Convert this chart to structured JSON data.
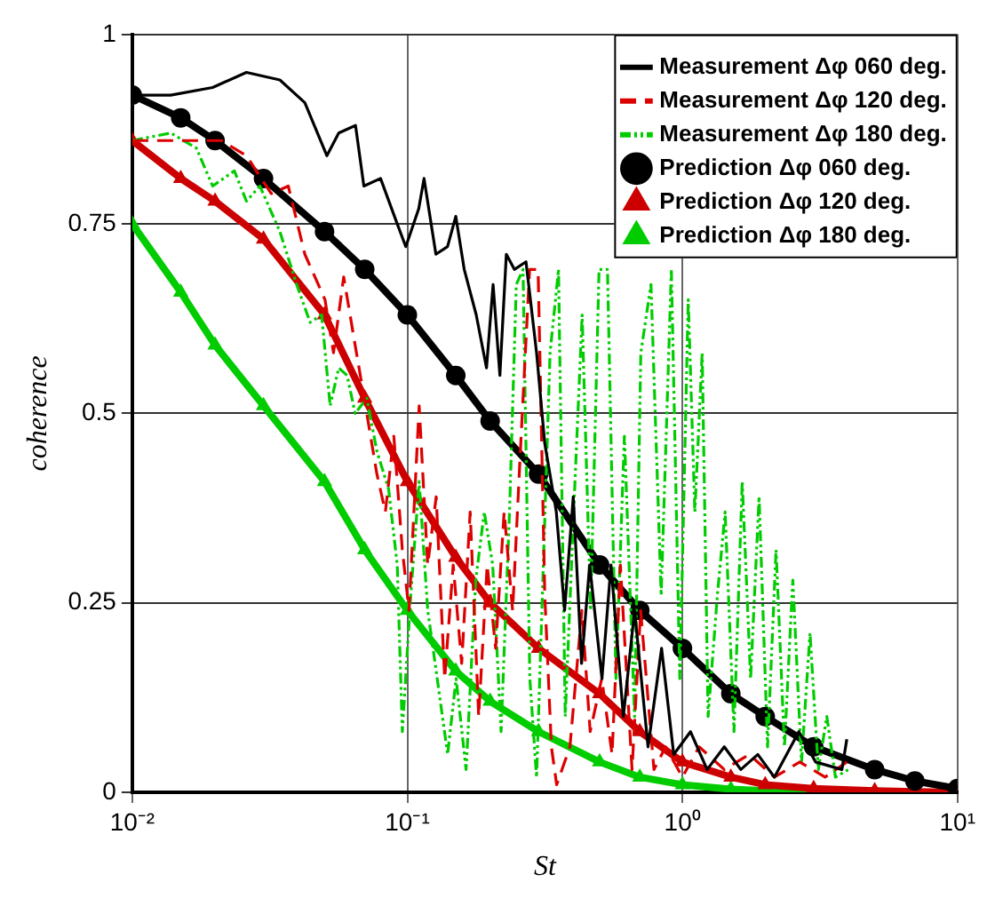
{
  "chart_data": {
    "type": "line",
    "xlabel": "St",
    "ylabel": "coherence",
    "log": "x",
    "xlim": [
      0.01,
      10
    ],
    "ylim": [
      0,
      1
    ],
    "xticks": [
      {
        "value": 0.01,
        "label": "10⁻²"
      },
      {
        "value": 0.1,
        "label": "10⁻¹"
      },
      {
        "value": 1,
        "label": "10⁰"
      },
      {
        "value": 10,
        "label": "10¹"
      }
    ],
    "yticks": [
      0,
      0.25,
      0.5,
      0.75,
      1
    ],
    "grid": true,
    "legend": "top right",
    "series": [
      {
        "name": "Measurement Δφ 060 deg.",
        "color": "#000000",
        "marker": "none",
        "line_style": "solid",
        "x": [
          0.01,
          0.0138,
          0.0196,
          0.026,
          0.0344,
          0.0424,
          0.051,
          0.0563,
          0.0648,
          0.0695,
          0.0799,
          0.0919,
          0.0987,
          0.11,
          0.115,
          0.127,
          0.14,
          0.15,
          0.161,
          0.178,
          0.194,
          0.205,
          0.217,
          0.229,
          0.245,
          0.27,
          0.295,
          0.316,
          0.348,
          0.373,
          0.401,
          0.43,
          0.46,
          0.51,
          0.55,
          0.61,
          0.67,
          0.75,
          0.84,
          0.93,
          1.07,
          1.23,
          1.42,
          1.63,
          1.88,
          2.16,
          2.65,
          3.05,
          3.8,
          3.96
        ],
        "values": [
          0.92,
          0.92,
          0.93,
          0.95,
          0.94,
          0.91,
          0.84,
          0.87,
          0.88,
          0.8,
          0.81,
          0.75,
          0.72,
          0.77,
          0.81,
          0.71,
          0.72,
          0.76,
          0.69,
          0.63,
          0.56,
          0.67,
          0.55,
          0.71,
          0.69,
          0.7,
          0.58,
          0.46,
          0.37,
          0.24,
          0.39,
          0.17,
          0.3,
          0.15,
          0.3,
          0.1,
          0.24,
          0.06,
          0.19,
          0.05,
          0.08,
          0.03,
          0.06,
          0.03,
          0.05,
          0.02,
          0.08,
          0.04,
          0.03,
          0.07
        ]
      },
      {
        "name": "Measurement Δφ 120 deg.",
        "color": "#dd0000",
        "marker": "none",
        "line_style": "dashed",
        "x": [
          0.01,
          0.0159,
          0.0211,
          0.026,
          0.032,
          0.0369,
          0.0424,
          0.0502,
          0.0539,
          0.0587,
          0.0646,
          0.0712,
          0.0775,
          0.0832,
          0.0893,
          0.0959,
          0.1014,
          0.1104,
          0.1186,
          0.1273,
          0.1367,
          0.1468,
          0.1576,
          0.1692,
          0.1817,
          0.1951,
          0.2094,
          0.2249,
          0.2414,
          0.2592,
          0.2783,
          0.2988,
          0.316,
          0.334,
          0.349,
          0.39,
          0.431,
          0.462,
          0.509,
          0.555,
          0.595,
          0.656,
          0.705,
          0.788,
          0.869,
          1.0,
          1.15,
          1.42,
          1.75,
          2.16,
          2.67,
          3.3,
          3.96
        ],
        "values": [
          0.86,
          0.86,
          0.86,
          0.84,
          0.79,
          0.8,
          0.71,
          0.65,
          0.58,
          0.68,
          0.59,
          0.5,
          0.42,
          0.37,
          0.47,
          0.32,
          0.24,
          0.51,
          0.3,
          0.39,
          0.15,
          0.3,
          0.17,
          0.37,
          0.1,
          0.3,
          0.19,
          0.37,
          0.24,
          0.47,
          0.69,
          0.69,
          0.26,
          0.06,
          0.01,
          0.06,
          0.24,
          0.08,
          0.15,
          0.05,
          0.3,
          0.03,
          0.24,
          0.03,
          0.06,
          0.02,
          0.06,
          0.03,
          0.05,
          0.02,
          0.04,
          0.02,
          0.04
        ]
      },
      {
        "name": "Measurement Δφ 180 deg.",
        "color": "#00cc00",
        "marker": "none",
        "line_style": "dotted",
        "x": [
          0.01,
          0.0138,
          0.0171,
          0.0196,
          0.0235,
          0.026,
          0.0291,
          0.0344,
          0.0396,
          0.0443,
          0.0488,
          0.0524,
          0.0563,
          0.0604,
          0.0646,
          0.0712,
          0.0775,
          0.0855,
          0.0919,
          0.0959,
          0.1029,
          0.1104,
          0.1186,
          0.1273,
          0.1401,
          0.1504,
          0.1635,
          0.1773,
          0.1904,
          0.2043,
          0.2192,
          0.2352,
          0.2489,
          0.2634,
          0.2788,
          0.295,
          0.3122,
          0.3303,
          0.3545,
          0.375,
          0.4025,
          0.432,
          0.4637,
          0.4977,
          0.5341,
          0.5733,
          0.6153,
          0.6701,
          0.7059,
          0.7687,
          0.8371,
          0.9117,
          0.9786,
          1.05,
          1.11,
          1.18,
          1.24,
          1.34,
          1.43,
          1.54,
          1.65,
          1.77,
          1.9,
          2.04,
          2.19,
          2.35,
          2.52,
          2.71,
          2.91,
          3.12,
          3.35,
          3.6,
          4.02
        ],
        "values": [
          0.86,
          0.87,
          0.85,
          0.8,
          0.82,
          0.78,
          0.8,
          0.74,
          0.67,
          0.62,
          0.63,
          0.51,
          0.56,
          0.55,
          0.5,
          0.52,
          0.45,
          0.4,
          0.3,
          0.08,
          0.26,
          0.41,
          0.24,
          0.16,
          0.05,
          0.15,
          0.03,
          0.28,
          0.37,
          0.3,
          0.08,
          0.37,
          0.67,
          0.69,
          0.15,
          0.02,
          0.3,
          0.58,
          0.69,
          0.1,
          0.37,
          0.63,
          0.24,
          0.69,
          0.69,
          0.15,
          0.47,
          0.1,
          0.58,
          0.67,
          0.26,
          0.69,
          0.15,
          0.65,
          0.37,
          0.58,
          0.1,
          0.26,
          0.37,
          0.08,
          0.41,
          0.15,
          0.39,
          0.06,
          0.32,
          0.06,
          0.28,
          0.04,
          0.21,
          0.03,
          0.1,
          0.02,
          0.03
        ]
      },
      {
        "name": "Prediction Δφ 060 deg.",
        "color": "#000000",
        "marker": "circle",
        "line_style": "solid",
        "x": [
          0.01,
          0.015,
          0.02,
          0.03,
          0.05,
          0.07,
          0.1,
          0.15,
          0.2,
          0.3,
          0.5,
          0.7,
          1,
          1.5,
          2,
          3,
          5,
          7,
          10
        ],
        "values": [
          0.92,
          0.89,
          0.86,
          0.81,
          0.74,
          0.69,
          0.63,
          0.55,
          0.49,
          0.42,
          0.3,
          0.24,
          0.19,
          0.13,
          0.1,
          0.06,
          0.03,
          0.015,
          0.005
        ]
      },
      {
        "name": "Prediction Δφ 120 deg.",
        "color": "#cc0000",
        "marker": "triangle",
        "line_style": "solid",
        "x": [
          0.01,
          0.015,
          0.02,
          0.03,
          0.05,
          0.07,
          0.1,
          0.15,
          0.2,
          0.3,
          0.5,
          0.7,
          1,
          1.5,
          2,
          3,
          5,
          7,
          10
        ],
        "values": [
          0.86,
          0.81,
          0.78,
          0.73,
          0.63,
          0.52,
          0.41,
          0.31,
          0.25,
          0.19,
          0.13,
          0.08,
          0.04,
          0.02,
          0.01,
          0.005,
          0.002,
          0.001,
          0
        ]
      },
      {
        "name": "Prediction Δφ 180 deg.",
        "color": "#00cc00",
        "marker": "triangle",
        "line_style": "solid",
        "x": [
          0.01,
          0.015,
          0.02,
          0.03,
          0.05,
          0.07,
          0.1,
          0.15,
          0.2,
          0.3,
          0.5,
          0.7,
          1,
          1.5,
          2,
          3,
          5
        ],
        "values": [
          0.75,
          0.66,
          0.59,
          0.51,
          0.41,
          0.32,
          0.24,
          0.16,
          0.12,
          0.08,
          0.04,
          0.02,
          0.01,
          0.004,
          0.002,
          0.001,
          0
        ]
      }
    ]
  }
}
